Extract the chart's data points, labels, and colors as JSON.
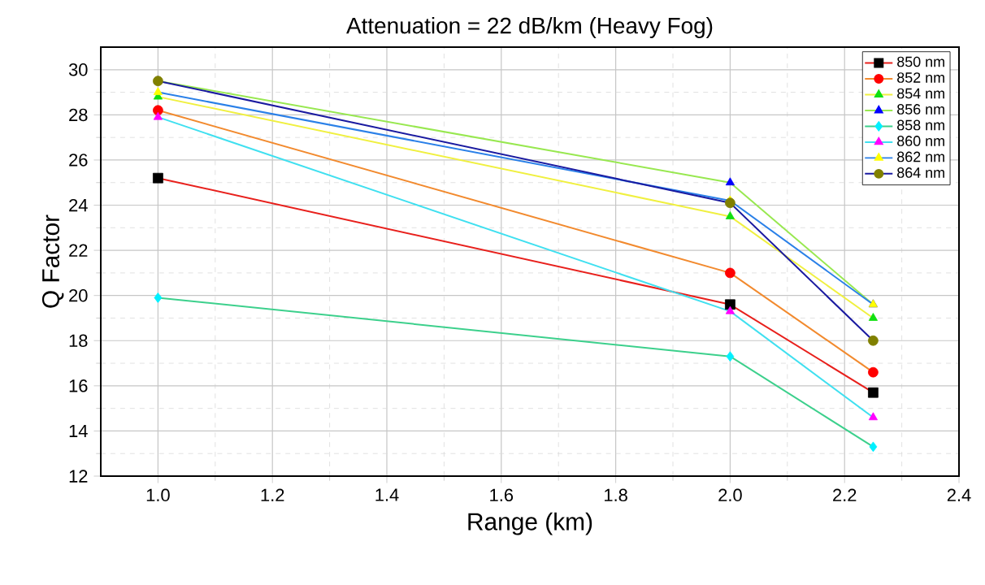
{
  "chart_data": {
    "type": "line",
    "title": "Attenuation = 22 dB/km (Heavy Fog)",
    "xlabel": "Range (km)",
    "ylabel": "Q Factor",
    "x": [
      1.0,
      2.0,
      2.25
    ],
    "xlim": [
      0.9,
      2.4
    ],
    "xticks": [
      {
        "value": 1.0,
        "label": "1.0"
      },
      {
        "value": 1.2,
        "label": "1.2"
      },
      {
        "value": 1.4,
        "label": "1.4"
      },
      {
        "value": 1.6,
        "label": "1.6"
      },
      {
        "value": 1.8,
        "label": "1.8"
      },
      {
        "value": 2.0,
        "label": "2.0"
      },
      {
        "value": 2.2,
        "label": "2.2"
      },
      {
        "value": 2.4,
        "label": "2.4"
      }
    ],
    "ylim": [
      12,
      31
    ],
    "yticks": [
      12,
      14,
      16,
      18,
      20,
      22,
      24,
      26,
      28,
      30
    ],
    "grid": true,
    "legend": "top right",
    "line_style": "solid",
    "series": [
      {
        "name": "850 nm",
        "color": "#e8201c",
        "colors": [
          "#000000",
          "#000000",
          "#000000"
        ],
        "marker": "square",
        "values": [
          25.2,
          19.6,
          15.7
        ]
      },
      {
        "name": "852 nm",
        "color": "#f28a2e",
        "colors": [
          "#ff0000",
          "#ff0000",
          "#ff0000"
        ],
        "marker": "circle",
        "values": [
          28.2,
          21.0,
          16.6
        ]
      },
      {
        "name": "854 nm",
        "color": "#f0f040",
        "colors": [
          "#10e010",
          "#10e010",
          "#10e010"
        ],
        "marker": "triangle",
        "values": [
          28.8,
          23.5,
          19.0
        ]
      },
      {
        "name": "856 nm",
        "color": "#98e850",
        "colors": [
          "#0000ff",
          "#0000ff",
          "#0000ff"
        ],
        "marker": "triangle",
        "values": [
          29.5,
          25.0,
          19.6
        ]
      },
      {
        "name": "858 nm",
        "color": "#3cd08c",
        "colors": [
          "#00f0ff",
          "#00f0ff",
          "#00f0ff"
        ],
        "marker": "diamond",
        "values": [
          19.9,
          17.3,
          13.3
        ]
      },
      {
        "name": "860 nm",
        "color": "#40e0f0",
        "colors": [
          "#ff00ff",
          "#ff00ff",
          "#ff00ff"
        ],
        "marker": "triangle",
        "values": [
          27.9,
          19.3,
          14.6
        ]
      },
      {
        "name": "862 nm",
        "color": "#2a80e8",
        "colors": [
          "#ffff00",
          "#ffff00",
          "#ffff00"
        ],
        "marker": "triangle",
        "values": [
          29.0,
          24.2,
          19.6
        ]
      },
      {
        "name": "864 nm",
        "color": "#1a1aa0",
        "colors": [
          "#808000",
          "#808000",
          "#808000"
        ],
        "marker": "circle",
        "values": [
          29.5,
          24.1,
          18.0
        ]
      }
    ]
  }
}
